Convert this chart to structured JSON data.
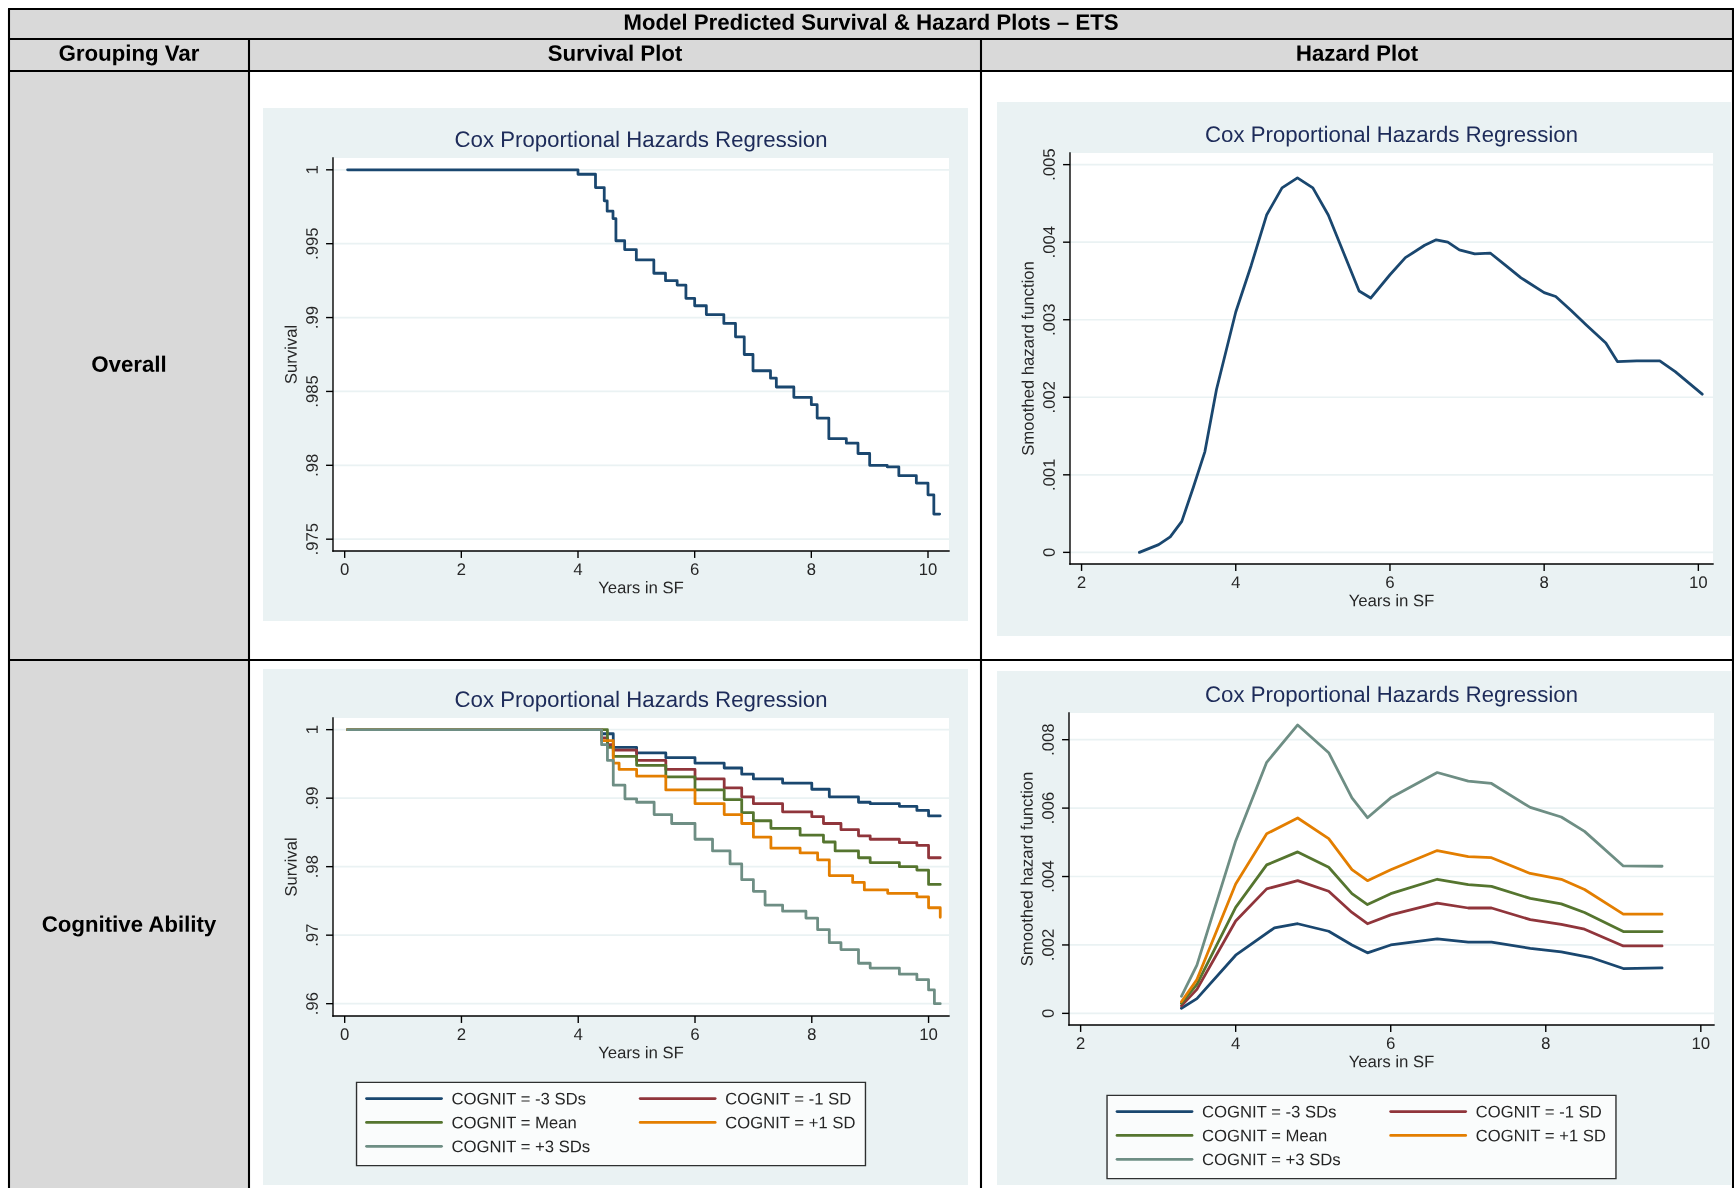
{
  "chart_data": [
    {
      "type": "step",
      "title": "Cox Proportional Hazards Regression",
      "xlabel": "Years in SF",
      "ylabel": "Survival",
      "annotations": [
        "Model Predicted Survival & Hazard Plots – ETS",
        "Grouping Var",
        "Survival Plot",
        "Overall"
      ],
      "xlim": [
        -0.2,
        10.36
      ],
      "xticks": [
        0,
        2,
        4,
        6,
        8,
        10
      ],
      "ylim": [
        0.9742,
        1.0008
      ],
      "yticks": [
        {
          "value": 0.975,
          "label": ".975"
        },
        {
          "value": 0.98,
          "label": ".98"
        },
        {
          "value": 0.985,
          "label": ".985"
        },
        {
          "value": 0.99,
          "label": ".99"
        },
        {
          "value": 0.995,
          "label": ".995"
        },
        1
      ],
      "grid": "y",
      "legend": false,
      "series": [
        {
          "color": "#1a476f",
          "x": [
            0.05,
            3.75,
            4.0,
            4.3,
            4.45,
            4.5,
            4.6,
            4.65,
            4.8,
            5.0,
            5.3,
            5.5,
            5.7,
            5.85,
            6.0,
            6.2,
            6.5,
            6.7,
            6.85,
            7.0,
            7.3,
            7.4,
            7.7,
            8.0,
            8.1,
            8.3,
            8.6,
            8.8,
            9.0,
            9.3,
            9.5,
            9.8,
            10.0,
            10.1,
            10.2
          ],
          "values": [
            1.0,
            1.0,
            0.9997,
            0.9988,
            0.9979,
            0.9972,
            0.9967,
            0.9952,
            0.9946,
            0.9939,
            0.993,
            0.9925,
            0.9922,
            0.9913,
            0.9908,
            0.9902,
            0.9896,
            0.9887,
            0.9875,
            0.9864,
            0.9859,
            0.9853,
            0.9846,
            0.9841,
            0.9832,
            0.9818,
            0.9815,
            0.9808,
            0.98,
            0.9799,
            0.9793,
            0.9788,
            0.978,
            0.9767,
            0.9767
          ]
        }
      ]
    },
    {
      "type": "line",
      "title": "Cox Proportional Hazards Regression",
      "xlabel": "Years in SF",
      "ylabel": "Smoothed hazard function",
      "annotations": [
        "Hazard Plot"
      ],
      "xlim": [
        1.85,
        10.19
      ],
      "xticks": [
        2,
        4,
        6,
        8,
        10
      ],
      "ylim": [
        -0.00015,
        0.00515
      ],
      "yticks": [
        0,
        {
          "value": 0.001,
          "label": ".001"
        },
        {
          "value": 0.002,
          "label": ".002"
        },
        {
          "value": 0.003,
          "label": ".003"
        },
        {
          "value": 0.004,
          "label": ".004"
        },
        {
          "value": 0.005,
          "label": ".005"
        }
      ],
      "grid": "y",
      "legend": false,
      "series": [
        {
          "color": "#1a476f",
          "x": [
            2.75,
            3.0,
            3.15,
            3.3,
            3.45,
            3.6,
            3.75,
            4.0,
            4.2,
            4.4,
            4.6,
            4.8,
            5.0,
            5.2,
            5.4,
            5.6,
            5.75,
            6.0,
            6.2,
            6.45,
            6.6,
            6.75,
            6.9,
            7.1,
            7.3,
            7.5,
            7.7,
            8.0,
            8.15,
            8.35,
            8.55,
            8.8,
            8.95,
            9.2,
            9.5,
            9.7,
            10.05
          ],
          "values": [
            0.0,
            0.0001,
            0.0002,
            0.0004,
            0.00084,
            0.0013,
            0.0021,
            0.0031,
            0.0037,
            0.00435,
            0.0047,
            0.00483,
            0.0047,
            0.00435,
            0.00386,
            0.00337,
            0.00328,
            0.00358,
            0.0038,
            0.00396,
            0.00403,
            0.004,
            0.0039,
            0.00385,
            0.00386,
            0.0037,
            0.00354,
            0.00335,
            0.0033,
            0.00312,
            0.00293,
            0.0027,
            0.00246,
            0.00247,
            0.00247,
            0.00233,
            0.00204
          ]
        }
      ]
    },
    {
      "type": "step",
      "title": "Cox Proportional Hazards Regression",
      "xlabel": "Years in SF",
      "ylabel": "Survival",
      "annotations": [
        "Cognitive Ability"
      ],
      "xlim": [
        -0.2,
        10.35
      ],
      "xticks": [
        0,
        2,
        4,
        6,
        8,
        10
      ],
      "ylim": [
        0.9582,
        1.0017
      ],
      "yticks": [
        {
          "value": 0.96,
          "label": ".96"
        },
        {
          "value": 0.97,
          "label": ".97"
        },
        {
          "value": 0.98,
          "label": ".98"
        },
        {
          "value": 0.99,
          "label": ".99"
        },
        1
      ],
      "grid": "y",
      "legend": "bottom",
      "series": [
        {
          "name": "COGNIT = -3 SDs",
          "color": "#1a476f",
          "x": [
            4.0,
            4.4,
            4.6,
            5.0,
            5.5,
            6.0,
            6.5,
            6.8,
            7.0,
            7.5,
            8.0,
            8.3,
            8.8,
            9.0,
            9.5,
            9.8,
            10.0,
            10.2
          ],
          "values": [
            1.0,
            0.9994,
            0.9974,
            0.9966,
            0.9959,
            0.9951,
            0.9944,
            0.9935,
            0.9928,
            0.9922,
            0.9913,
            0.9902,
            0.9894,
            0.9892,
            0.9888,
            0.9882,
            0.9874,
            0.9874
          ]
        },
        {
          "name": "COGNIT = -1 SD",
          "color": "#90353b",
          "x": [
            0.05,
            3.8,
            4.4,
            4.5,
            4.6,
            5.0,
            5.5,
            6.0,
            6.5,
            6.8,
            7.0,
            7.5,
            8.0,
            8.2,
            8.5,
            8.8,
            9.0,
            9.5,
            9.8,
            10.0,
            10.2
          ],
          "values": [
            1.0,
            1.0,
            0.9988,
            0.9978,
            0.997,
            0.9955,
            0.9942,
            0.9928,
            0.9915,
            0.9902,
            0.9892,
            0.988,
            0.9873,
            0.9863,
            0.9854,
            0.9845,
            0.984,
            0.9835,
            0.9831,
            0.9813,
            0.9813
          ]
        },
        {
          "name": "COGNIT = Mean",
          "color": "#55752f",
          "x": [
            0.05,
            3.8,
            4.5,
            4.6,
            5.0,
            5.5,
            6.0,
            6.5,
            6.8,
            7.0,
            7.3,
            7.8,
            8.2,
            8.4,
            8.8,
            9.0,
            9.5,
            9.8,
            10.0,
            10.2
          ],
          "values": [
            1.0,
            1.0,
            0.9974,
            0.9961,
            0.9948,
            0.9931,
            0.9912,
            0.9898,
            0.9879,
            0.9867,
            0.9856,
            0.9846,
            0.9836,
            0.9823,
            0.9813,
            0.9806,
            0.98,
            0.9795,
            0.9774,
            0.9774
          ]
        },
        {
          "name": "COGNIT = +1 SD",
          "color": "#e37e00",
          "x": [
            0.05,
            3.8,
            4.4,
            4.6,
            4.7,
            5.0,
            5.5,
            6.0,
            6.5,
            6.8,
            7.0,
            7.3,
            7.8,
            8.1,
            8.3,
            8.7,
            8.9,
            9.3,
            9.8,
            10.0,
            10.2
          ],
          "values": [
            1.0,
            1.0,
            0.9984,
            0.9951,
            0.9942,
            0.9932,
            0.9912,
            0.9892,
            0.9876,
            0.9863,
            0.9843,
            0.9827,
            0.982,
            0.981,
            0.9787,
            0.9777,
            0.9766,
            0.9761,
            0.9756,
            0.974,
            0.9726
          ]
        },
        {
          "name": "COGNIT = +3 SDs",
          "color": "#6e8e84",
          "x": [
            0.05,
            3.8,
            4.4,
            4.5,
            4.6,
            4.8,
            5.0,
            5.3,
            5.6,
            6.0,
            6.3,
            6.6,
            6.8,
            7.0,
            7.2,
            7.5,
            7.9,
            8.1,
            8.3,
            8.5,
            8.8,
            9.0,
            9.5,
            9.8,
            10.0,
            10.1,
            10.2
          ],
          "values": [
            1.0,
            1.0,
            0.9978,
            0.9955,
            0.9919,
            0.9899,
            0.9894,
            0.9876,
            0.9863,
            0.984,
            0.9823,
            0.9804,
            0.9781,
            0.9764,
            0.9744,
            0.9735,
            0.9725,
            0.9708,
            0.9689,
            0.9679,
            0.9659,
            0.9652,
            0.9643,
            0.9635,
            0.962,
            0.96,
            0.96
          ]
        }
      ]
    },
    {
      "type": "line",
      "title": "Cox Proportional Hazards Regression",
      "xlabel": "Years in SF",
      "ylabel": "Smoothed hazard function",
      "xlim": [
        1.85,
        10.17
      ],
      "xticks": [
        2,
        4,
        6,
        8,
        10
      ],
      "ylim": [
        -0.00034,
        0.00878
      ],
      "yticks": [
        0,
        {
          "value": 0.002,
          "label": ".002"
        },
        {
          "value": 0.004,
          "label": ".004"
        },
        {
          "value": 0.006,
          "label": ".006"
        },
        {
          "value": 0.008,
          "label": ".008"
        }
      ],
      "grid": "y",
      "legend": "bottom",
      "series": [
        {
          "name": "COGNIT = -3 SDs",
          "color": "#1a476f",
          "x": [
            3.3,
            3.5,
            4.0,
            4.5,
            4.8,
            5.2,
            5.5,
            5.7,
            6.0,
            6.6,
            7.0,
            7.3,
            7.8,
            8.2,
            8.6,
            9.0,
            9.5
          ],
          "values": [
            0.00015,
            0.00043,
            0.0017,
            0.0025,
            0.00262,
            0.0024,
            0.002,
            0.00177,
            0.002,
            0.00218,
            0.00208,
            0.00208,
            0.0019,
            0.0018,
            0.00162,
            0.00131,
            0.00133
          ]
        },
        {
          "name": "COGNIT = -1 SD",
          "color": "#90353b",
          "x": [
            3.3,
            3.5,
            4.0,
            4.4,
            4.8,
            5.2,
            5.5,
            5.7,
            6.0,
            6.6,
            7.0,
            7.3,
            7.8,
            8.2,
            8.5,
            9.0,
            9.5
          ],
          "values": [
            0.00022,
            0.0007,
            0.0027,
            0.00364,
            0.00388,
            0.00357,
            0.00295,
            0.00262,
            0.00288,
            0.00322,
            0.00308,
            0.00308,
            0.00274,
            0.0026,
            0.00246,
            0.00197,
            0.00197
          ]
        },
        {
          "name": "COGNIT = Mean",
          "color": "#55752f",
          "x": [
            3.3,
            3.5,
            4.0,
            4.4,
            4.8,
            5.2,
            5.5,
            5.7,
            6.0,
            6.6,
            7.0,
            7.3,
            7.8,
            8.2,
            8.5,
            9.0,
            9.5
          ],
          "values": [
            0.00029,
            0.00085,
            0.0031,
            0.00434,
            0.00472,
            0.00427,
            0.0035,
            0.00318,
            0.0035,
            0.00392,
            0.00376,
            0.00371,
            0.00336,
            0.0032,
            0.00295,
            0.00239,
            0.00239
          ]
        },
        {
          "name": "COGNIT = +1 SD",
          "color": "#e37e00",
          "x": [
            3.3,
            3.5,
            4.0,
            4.4,
            4.8,
            5.2,
            5.5,
            5.7,
            6.0,
            6.6,
            7.0,
            7.3,
            7.8,
            8.2,
            8.5,
            9.0,
            9.5
          ],
          "values": [
            0.00034,
            0.00099,
            0.00378,
            0.00525,
            0.00571,
            0.00511,
            0.0042,
            0.00388,
            0.0042,
            0.00476,
            0.00458,
            0.00455,
            0.00409,
            0.00392,
            0.00362,
            0.0029,
            0.0029
          ]
        },
        {
          "name": "COGNIT = +3 SDs",
          "color": "#6e8e84",
          "x": [
            3.3,
            3.5,
            4.0,
            4.4,
            4.8,
            5.2,
            5.5,
            5.7,
            6.0,
            6.6,
            7.0,
            7.3,
            7.8,
            8.2,
            8.5,
            9.0,
            9.5
          ],
          "values": [
            0.0005,
            0.00141,
            0.00504,
            0.00734,
            0.00843,
            0.00762,
            0.0063,
            0.00572,
            0.0063,
            0.00704,
            0.00679,
            0.00672,
            0.00602,
            0.00574,
            0.00532,
            0.00431,
            0.0043
          ]
        }
      ]
    }
  ]
}
